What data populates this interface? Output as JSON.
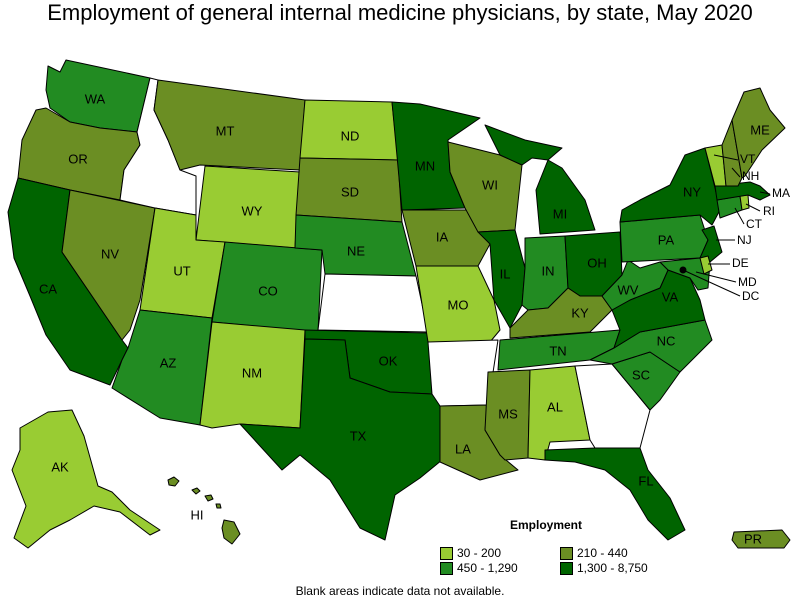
{
  "title": "Employment of general internal medicine physicians, by state, May 2020",
  "footnote": "Blank areas indicate data not available.",
  "legend": {
    "title": "Employment",
    "classes": [
      {
        "key": "c1",
        "label": "30 - 200",
        "color": "#99cc33"
      },
      {
        "key": "c2",
        "label": "210 - 440",
        "color": "#6b8e23"
      },
      {
        "key": "c3",
        "label": "450 - 1,290",
        "color": "#228b22"
      },
      {
        "key": "c4",
        "label": "1,300 - 8,750",
        "color": "#006400"
      }
    ]
  },
  "colors": {
    "blank": "#ffffff",
    "border": "#000000"
  },
  "states": {
    "WA": {
      "label": "WA",
      "class": "c3"
    },
    "OR": {
      "label": "OR",
      "class": "c2"
    },
    "CA": {
      "label": "CA",
      "class": "c4"
    },
    "NV": {
      "label": "NV",
      "class": "c2"
    },
    "ID": {
      "label": "",
      "class": "blank"
    },
    "MT": {
      "label": "MT",
      "class": "c2"
    },
    "WY": {
      "label": "WY",
      "class": "c1"
    },
    "UT": {
      "label": "UT",
      "class": "c1"
    },
    "AZ": {
      "label": "AZ",
      "class": "c3"
    },
    "CO": {
      "label": "CO",
      "class": "c3"
    },
    "NM": {
      "label": "NM",
      "class": "c1"
    },
    "ND": {
      "label": "ND",
      "class": "c1"
    },
    "SD": {
      "label": "SD",
      "class": "c2"
    },
    "NE": {
      "label": "NE",
      "class": "c3"
    },
    "KS": {
      "label": "",
      "class": "blank"
    },
    "OK": {
      "label": "OK",
      "class": "c4"
    },
    "TX": {
      "label": "TX",
      "class": "c4"
    },
    "MN": {
      "label": "MN",
      "class": "c4"
    },
    "IA": {
      "label": "IA",
      "class": "c2"
    },
    "MO": {
      "label": "MO",
      "class": "c1"
    },
    "AR": {
      "label": "",
      "class": "blank"
    },
    "LA": {
      "label": "LA",
      "class": "c2"
    },
    "WI": {
      "label": "WI",
      "class": "c2"
    },
    "IL": {
      "label": "IL",
      "class": "c4"
    },
    "MI": {
      "label": "MI",
      "class": "c4"
    },
    "IN": {
      "label": "IN",
      "class": "c3"
    },
    "OH": {
      "label": "OH",
      "class": "c4"
    },
    "KY": {
      "label": "KY",
      "class": "c2"
    },
    "TN": {
      "label": "TN",
      "class": "c3"
    },
    "MS": {
      "label": "MS",
      "class": "c2"
    },
    "AL": {
      "label": "AL",
      "class": "c1"
    },
    "GA": {
      "label": "",
      "class": "blank"
    },
    "FL": {
      "label": "FL",
      "class": "c4"
    },
    "SC": {
      "label": "SC",
      "class": "c3"
    },
    "NC": {
      "label": "NC",
      "class": "c3"
    },
    "VA": {
      "label": "VA",
      "class": "c4"
    },
    "WV": {
      "label": "WV",
      "class": "c3"
    },
    "PA": {
      "label": "PA",
      "class": "c3"
    },
    "NY": {
      "label": "NY",
      "class": "c4"
    },
    "VT": {
      "label": "VT",
      "class": "c1"
    },
    "NH": {
      "label": "NH",
      "class": "c2"
    },
    "ME": {
      "label": "ME",
      "class": "c2"
    },
    "MA": {
      "label": "MA",
      "class": "c4"
    },
    "RI": {
      "label": "RI",
      "class": "c1"
    },
    "CT": {
      "label": "CT",
      "class": "c3"
    },
    "NJ": {
      "label": "NJ",
      "class": "c4"
    },
    "DE": {
      "label": "DE",
      "class": "c1"
    },
    "MD": {
      "label": "MD",
      "class": "c3"
    },
    "DC": {
      "label": "DC",
      "class": "c4"
    },
    "AK": {
      "label": "AK",
      "class": "c1"
    },
    "HI": {
      "label": "HI",
      "class": "c2"
    },
    "PR": {
      "label": "PR",
      "class": "c2"
    }
  }
}
